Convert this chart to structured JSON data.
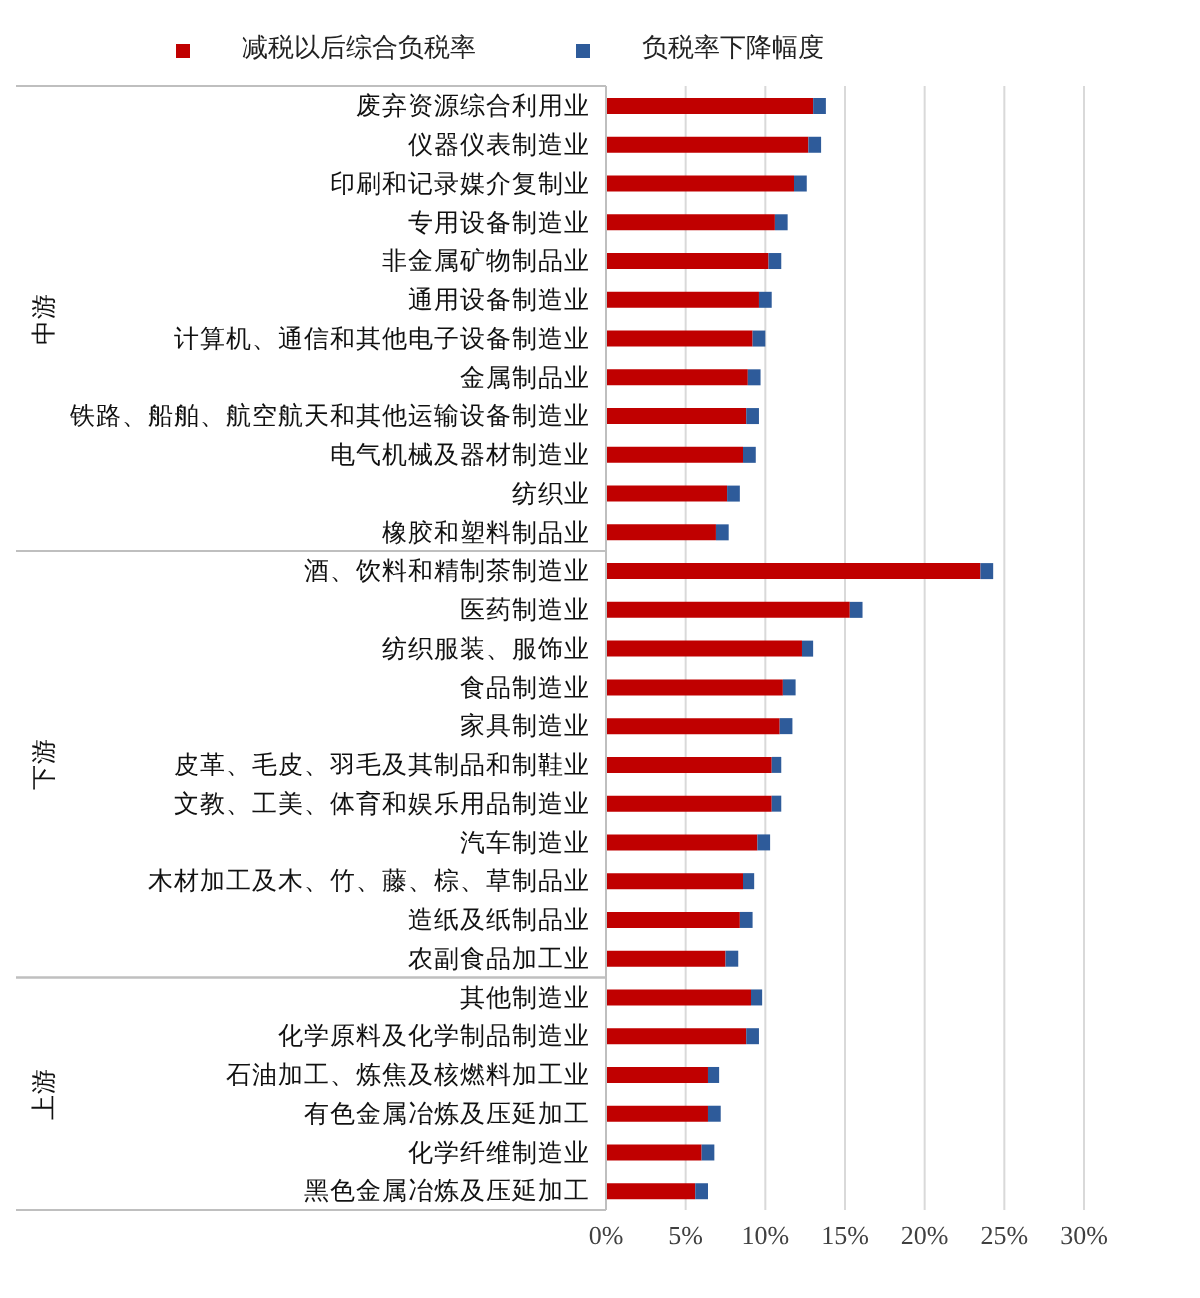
{
  "chart_data": {
    "type": "bar",
    "orientation": "horizontal",
    "stacked": true,
    "categories": [
      "废弃资源综合利用业",
      "仪器仪表制造业",
      "印刷和记录媒介复制业",
      "专用设备制造业",
      "非金属矿物制品业",
      "通用设备制造业",
      "计算机、通信和其他电子设备制造业",
      "金属制品业",
      "铁路、船舶、航空航天和其他运输设备制造业",
      "电气机械及器材制造业",
      "纺织业",
      "橡胶和塑料制品业",
      "酒、饮料和精制茶制造业",
      "医药制造业",
      "纺织服装、服饰业",
      "食品制造业",
      "家具制造业",
      "皮革、毛皮、羽毛及其制品和制鞋业",
      "文教、工美、体育和娱乐用品制造业",
      "汽车制造业",
      "木材加工及木、竹、藤、棕、草制品业",
      "造纸及纸制品业",
      "农副食品加工业",
      "其他制造业",
      "化学原料及化学制品制造业",
      "石油加工、炼焦及核燃料加工业",
      "有色金属冶炼及压延加工",
      "化学纤维制造业",
      "黑色金属冶炼及压延加工"
    ],
    "series": [
      {
        "name": "减税以后综合负税率",
        "color": "#c00000",
        "values": [
          13.0,
          12.7,
          11.8,
          10.6,
          10.2,
          9.6,
          9.2,
          8.9,
          8.8,
          8.6,
          7.6,
          6.9,
          23.5,
          15.3,
          12.3,
          11.1,
          10.9,
          10.4,
          10.4,
          9.5,
          8.6,
          8.4,
          7.5,
          9.1,
          8.8,
          6.4,
          6.4,
          6.0,
          5.6
        ]
      },
      {
        "name": "负税率下降幅度",
        "color": "#2e5b9a",
        "values": [
          0.8,
          0.8,
          0.8,
          0.8,
          0.8,
          0.8,
          0.8,
          0.8,
          0.8,
          0.8,
          0.8,
          0.8,
          0.8,
          0.8,
          0.7,
          0.8,
          0.8,
          0.6,
          0.6,
          0.8,
          0.7,
          0.8,
          0.8,
          0.7,
          0.8,
          0.7,
          0.8,
          0.8,
          0.8
        ]
      }
    ],
    "xlim": [
      0,
      30
    ],
    "xticks": [
      {
        "value": 0,
        "label": "0%"
      },
      {
        "value": 5,
        "label": "5%"
      },
      {
        "value": 10,
        "label": "10%"
      },
      {
        "value": 15,
        "label": "15%"
      },
      {
        "value": 20,
        "label": "20%"
      },
      {
        "value": 25,
        "label": "25%"
      },
      {
        "value": 30,
        "label": "30%"
      }
    ],
    "annotations": [
      "中游",
      "下游",
      "上游"
    ],
    "grid": "x",
    "legend": "top"
  }
}
